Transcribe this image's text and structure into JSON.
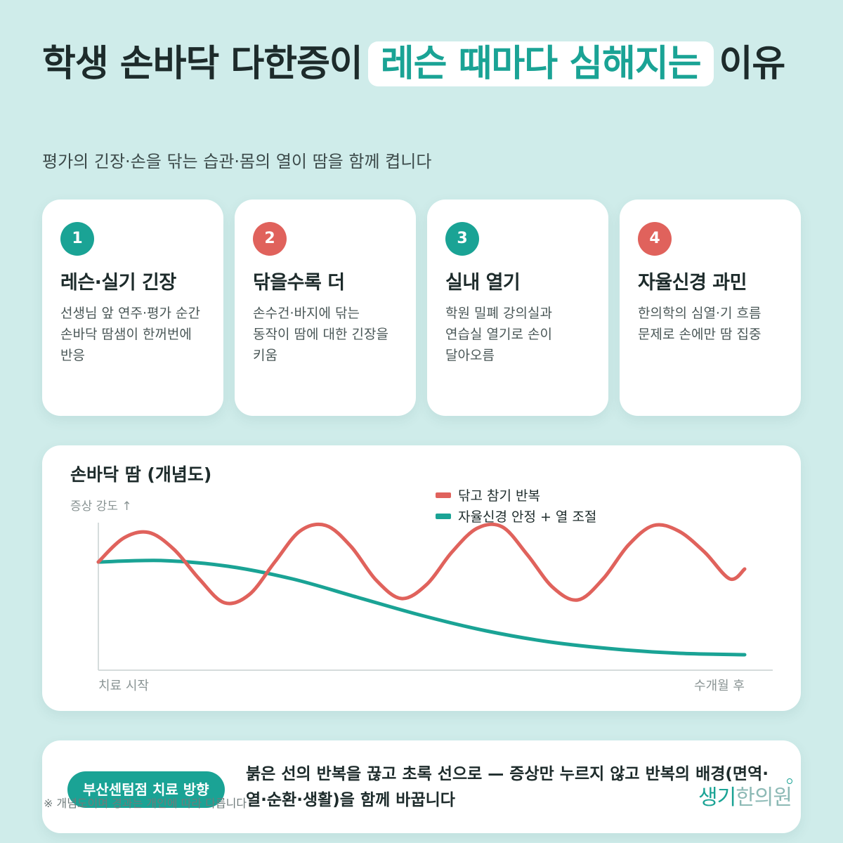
{
  "title": {
    "part1": "학생 손바닥 다한증이",
    "highlight": "레슨 때마다 심해지는",
    "part2": "이유"
  },
  "subtitle": "평가의 긴장·손을 닦는 습관·몸의 열이 땀을 함께 켭니다",
  "cards": [
    {
      "number": "1",
      "title": "레슨·실기 긴장",
      "desc": "선생님 앞 연주·평가 순간 손바닥 땀샘이 한꺼번에 반응",
      "badge_color": "#1aa395"
    },
    {
      "number": "2",
      "title": "닦을수록 더",
      "desc": "손수건·바지에 닦는 동작이 땀에 대한 긴장을 키움",
      "badge_color": "#e0625c"
    },
    {
      "number": "3",
      "title": "실내 열기",
      "desc": "학원 밀폐 강의실과 연습실 열기로 손이 달아오름",
      "badge_color": "#1aa395"
    },
    {
      "number": "4",
      "title": "자율신경 과민",
      "desc": "한의학의 심열·기 흐름 문제로 손에만 땀 집중",
      "badge_color": "#e0625c"
    }
  ],
  "chart_data": {
    "type": "line",
    "title": "손바닥 땀 (개념도)",
    "ylabel": "증상 강도 ↑",
    "x_start_label": "치료 시작",
    "x_end_label": "수개월 후",
    "xlim": [
      0,
      1
    ],
    "ylim": [
      0,
      1
    ],
    "grid": false,
    "legend_position": "top-right",
    "series": [
      {
        "name": "닦고 참기 반복",
        "color": "#e0625c",
        "x": [
          0,
          0.039,
          0.078,
          0.117,
          0.156,
          0.195,
          0.234,
          0.273,
          0.312,
          0.352,
          0.391,
          0.43,
          0.469,
          0.508,
          0.547,
          0.586,
          0.625,
          0.664,
          0.703,
          0.742,
          0.781,
          0.82,
          0.859,
          0.898,
          0.938,
          0.977,
          1.0
        ],
        "values": [
          0.72,
          0.89,
          0.93,
          0.81,
          0.6,
          0.43,
          0.49,
          0.72,
          0.94,
          0.98,
          0.83,
          0.59,
          0.46,
          0.56,
          0.79,
          0.96,
          0.97,
          0.77,
          0.54,
          0.45,
          0.6,
          0.84,
          0.98,
          0.94,
          0.79,
          0.6,
          0.67
        ]
      },
      {
        "name": "자율신경 안정 + 열 조절",
        "color": "#1aa395",
        "x": [
          0,
          0.1,
          0.2,
          0.3,
          0.4,
          0.5,
          0.6,
          0.7,
          0.8,
          0.9,
          1.0
        ],
        "values": [
          0.72,
          0.73,
          0.69,
          0.6,
          0.47,
          0.34,
          0.23,
          0.15,
          0.1,
          0.07,
          0.06
        ]
      }
    ]
  },
  "bottom": {
    "pill_label": "부산센텀점 치료 방향",
    "text": "붉은 선의 반복을 끊고 초록 선으로 — 증상만 누르지 않고 반복의 배경(면역·열·순환·생활)을 함께 바꿉니다"
  },
  "footnote": "※ 개념도이며 경과는 개인에 따라 다릅니다",
  "logo": {
    "main": "생기",
    "light": "한의원"
  },
  "colors": {
    "background": "#cfecea",
    "accent": "#1aa395",
    "red": "#e0625c"
  }
}
